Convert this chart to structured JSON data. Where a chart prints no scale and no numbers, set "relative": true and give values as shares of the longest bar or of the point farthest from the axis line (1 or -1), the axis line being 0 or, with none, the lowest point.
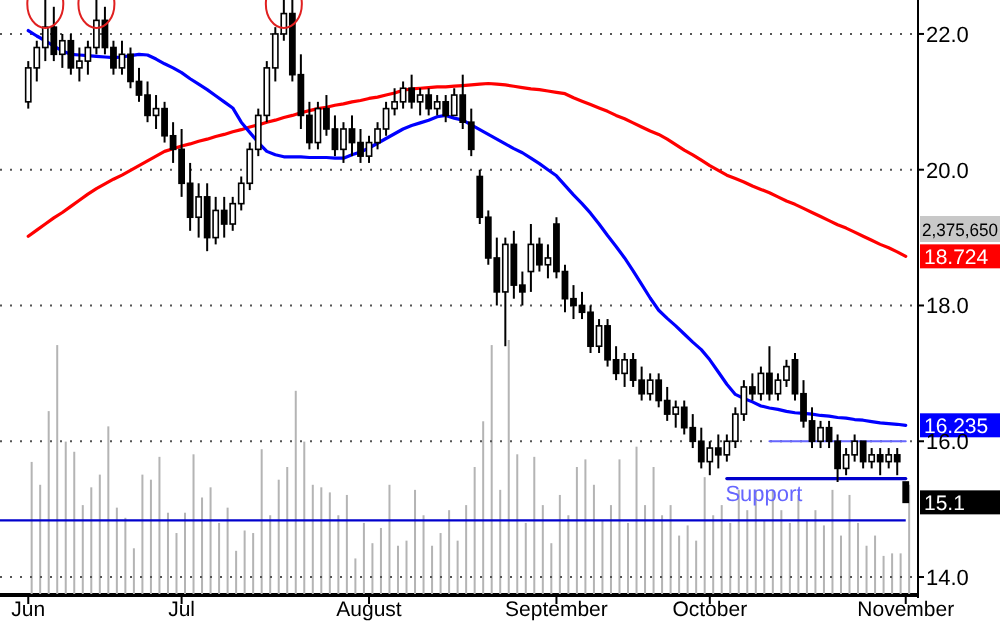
{
  "chart_data": [
    {
      "type": "candlestick",
      "categories": [
        "Jun",
        null,
        null,
        null,
        null,
        null,
        null,
        null,
        null,
        null,
        null,
        null,
        null,
        null,
        null,
        null,
        null,
        null,
        "Jul",
        null,
        null,
        null,
        null,
        null,
        null,
        null,
        null,
        null,
        null,
        null,
        null,
        null,
        null,
        null,
        null,
        null,
        null,
        null,
        null,
        null,
        "August",
        null,
        null,
        null,
        null,
        null,
        null,
        null,
        null,
        null,
        null,
        null,
        null,
        null,
        null,
        null,
        null,
        null,
        null,
        null,
        null,
        null,
        "September",
        null,
        null,
        null,
        null,
        null,
        null,
        null,
        null,
        null,
        null,
        null,
        null,
        null,
        null,
        null,
        null,
        null,
        "October",
        null,
        null,
        null,
        null,
        null,
        null,
        null,
        null,
        null,
        null,
        null,
        null,
        null,
        null,
        null,
        null,
        null,
        null,
        null,
        null,
        null,
        null,
        "November"
      ],
      "ohlc": [
        [
          21.0,
          21.6,
          20.9,
          21.5
        ],
        [
          21.5,
          21.9,
          21.3,
          21.8
        ],
        [
          21.8,
          22.5,
          21.6,
          22.1
        ],
        [
          22.1,
          22.4,
          21.6,
          21.7
        ],
        [
          21.7,
          22.0,
          21.5,
          21.9
        ],
        [
          21.9,
          22.0,
          21.4,
          21.5
        ],
        [
          21.5,
          21.8,
          21.3,
          21.6
        ],
        [
          21.6,
          21.9,
          21.4,
          21.8
        ],
        [
          21.8,
          22.5,
          21.7,
          22.2
        ],
        [
          22.2,
          22.4,
          21.7,
          21.8
        ],
        [
          21.8,
          21.9,
          21.4,
          21.5
        ],
        [
          21.5,
          21.9,
          21.4,
          21.7
        ],
        [
          21.7,
          21.8,
          21.2,
          21.3
        ],
        [
          21.3,
          21.5,
          21.0,
          21.1
        ],
        [
          21.1,
          21.3,
          20.7,
          20.8
        ],
        [
          20.8,
          21.1,
          20.6,
          20.9
        ],
        [
          20.9,
          21.0,
          20.4,
          20.5
        ],
        [
          20.5,
          20.7,
          20.1,
          20.3
        ],
        [
          20.3,
          20.6,
          19.6,
          19.8
        ],
        [
          19.8,
          20.1,
          19.1,
          19.3
        ],
        [
          19.3,
          19.8,
          19.0,
          19.6
        ],
        [
          19.6,
          19.8,
          18.8,
          19.0
        ],
        [
          19.0,
          19.6,
          18.9,
          19.4
        ],
        [
          19.4,
          19.6,
          19.0,
          19.2
        ],
        [
          19.2,
          19.6,
          19.1,
          19.5
        ],
        [
          19.5,
          19.9,
          19.4,
          19.8
        ],
        [
          19.8,
          20.4,
          19.7,
          20.3
        ],
        [
          20.3,
          20.9,
          20.2,
          20.8
        ],
        [
          20.8,
          21.6,
          20.7,
          21.5
        ],
        [
          21.5,
          22.1,
          21.3,
          22.0
        ],
        [
          22.0,
          22.5,
          21.9,
          22.3
        ],
        [
          22.3,
          22.5,
          21.3,
          21.4
        ],
        [
          21.4,
          21.7,
          20.6,
          20.8
        ],
        [
          20.8,
          21.0,
          20.3,
          20.4
        ],
        [
          20.4,
          21.0,
          20.3,
          20.9
        ],
        [
          20.9,
          21.1,
          20.5,
          20.6
        ],
        [
          20.6,
          20.8,
          20.2,
          20.3
        ],
        [
          20.3,
          20.7,
          20.1,
          20.6
        ],
        [
          20.6,
          20.8,
          20.2,
          20.4
        ],
        [
          20.4,
          20.6,
          20.1,
          20.2
        ],
        [
          20.2,
          20.5,
          20.1,
          20.4
        ],
        [
          20.4,
          20.7,
          20.3,
          20.6
        ],
        [
          20.6,
          21.0,
          20.5,
          20.9
        ],
        [
          20.9,
          21.2,
          20.8,
          21.0
        ],
        [
          21.0,
          21.3,
          20.9,
          21.2
        ],
        [
          21.2,
          21.4,
          20.9,
          21.0
        ],
        [
          21.0,
          21.2,
          20.8,
          21.1
        ],
        [
          21.1,
          21.2,
          20.8,
          20.9
        ],
        [
          20.9,
          21.1,
          20.8,
          21.0
        ],
        [
          21.0,
          21.1,
          20.7,
          20.8
        ],
        [
          20.8,
          21.2,
          20.8,
          21.1
        ],
        [
          21.1,
          21.4,
          20.6,
          20.7
        ],
        [
          20.7,
          20.9,
          20.2,
          20.3
        ],
        [
          19.9,
          20.0,
          19.2,
          19.3
        ],
        [
          19.3,
          19.4,
          18.6,
          18.7
        ],
        [
          18.7,
          19.0,
          18.0,
          18.2
        ],
        [
          18.2,
          19.0,
          17.4,
          18.9
        ],
        [
          18.9,
          19.1,
          18.1,
          18.3
        ],
        [
          18.3,
          18.5,
          18.0,
          18.2
        ],
        [
          18.5,
          19.2,
          18.2,
          18.9
        ],
        [
          18.9,
          19.0,
          18.5,
          18.6
        ],
        [
          18.6,
          18.9,
          18.4,
          18.7
        ],
        [
          19.2,
          19.3,
          18.4,
          18.5
        ],
        [
          18.5,
          18.6,
          17.9,
          18.1
        ],
        [
          18.1,
          18.3,
          17.8,
          18.0
        ],
        [
          18.0,
          18.2,
          17.8,
          17.9
        ],
        [
          17.9,
          18.0,
          17.3,
          17.4
        ],
        [
          17.4,
          17.8,
          17.3,
          17.7
        ],
        [
          17.7,
          17.8,
          17.1,
          17.2
        ],
        [
          17.2,
          17.4,
          16.9,
          17.0
        ],
        [
          17.0,
          17.3,
          16.8,
          17.2
        ],
        [
          17.2,
          17.3,
          16.8,
          16.9
        ],
        [
          16.9,
          17.1,
          16.6,
          16.7
        ],
        [
          16.7,
          17.0,
          16.6,
          16.9
        ],
        [
          16.9,
          17.0,
          16.5,
          16.6
        ],
        [
          16.6,
          16.8,
          16.3,
          16.4
        ],
        [
          16.4,
          16.6,
          16.2,
          16.5
        ],
        [
          16.5,
          16.6,
          16.1,
          16.2
        ],
        [
          16.2,
          16.4,
          15.9,
          16.0
        ],
        [
          16.0,
          16.2,
          15.6,
          15.7
        ],
        [
          15.7,
          16.0,
          15.5,
          15.9
        ],
        [
          15.9,
          16.1,
          15.6,
          15.8
        ],
        [
          15.8,
          16.1,
          15.7,
          16.0
        ],
        [
          16.0,
          16.5,
          15.9,
          16.4
        ],
        [
          16.4,
          16.9,
          16.3,
          16.8
        ],
        [
          16.8,
          17.0,
          16.6,
          16.7
        ],
        [
          16.7,
          17.1,
          16.6,
          17.0
        ],
        [
          17.0,
          17.4,
          16.6,
          16.7
        ],
        [
          16.7,
          17.0,
          16.6,
          16.9
        ],
        [
          16.9,
          17.2,
          16.8,
          17.1
        ],
        [
          17.2,
          17.3,
          16.6,
          16.7
        ],
        [
          16.7,
          16.9,
          16.2,
          16.3
        ],
        [
          16.3,
          16.5,
          15.9,
          16.0
        ],
        [
          16.0,
          16.3,
          15.9,
          16.2
        ],
        [
          16.2,
          16.3,
          15.9,
          16.0
        ],
        [
          16.0,
          16.1,
          15.4,
          15.6
        ],
        [
          15.6,
          15.9,
          15.5,
          15.8
        ],
        [
          15.8,
          16.1,
          15.7,
          16.0
        ],
        [
          16.0,
          16.0,
          15.6,
          15.7
        ],
        [
          15.7,
          15.9,
          15.6,
          15.8
        ],
        [
          15.8,
          15.9,
          15.5,
          15.7
        ],
        [
          15.7,
          15.9,
          15.6,
          15.8
        ],
        [
          15.8,
          15.9,
          15.5,
          15.7
        ],
        [
          15.4,
          15.4,
          15.1,
          15.1
        ]
      ],
      "series": [
        {
          "type": "line",
          "color": "#ff0000",
          "values": [
            19.02,
            19.11,
            19.2,
            19.29,
            19.37,
            19.46,
            19.55,
            19.64,
            19.72,
            19.79,
            19.86,
            19.92,
            19.99,
            20.06,
            20.13,
            20.2,
            20.27,
            20.31,
            20.35,
            20.38,
            20.42,
            20.45,
            20.49,
            20.52,
            20.56,
            20.59,
            20.63,
            20.66,
            20.7,
            20.73,
            20.77,
            20.8,
            20.84,
            20.87,
            20.9,
            20.92,
            20.95,
            20.97,
            21.0,
            21.02,
            21.05,
            21.07,
            21.1,
            21.13,
            21.17,
            21.19,
            21.2,
            21.21,
            21.22,
            21.22,
            21.23,
            21.24,
            21.25,
            21.26,
            21.27,
            21.26,
            21.25,
            21.23,
            21.21,
            21.19,
            21.18,
            21.16,
            21.14,
            21.12,
            21.06,
            21.01,
            20.96,
            20.91,
            20.86,
            20.8,
            20.75,
            20.69,
            20.63,
            20.57,
            20.52,
            20.45,
            20.37,
            20.29,
            20.22,
            20.14,
            20.06,
            19.99,
            19.92,
            19.87,
            19.82,
            19.76,
            19.71,
            19.66,
            19.6,
            19.54,
            19.49,
            19.43,
            19.37,
            19.31,
            19.25,
            19.19,
            19.14,
            19.08,
            19.02,
            18.96,
            18.9,
            18.85,
            18.79,
            18.724
          ],
          "value_labels": [
            null,
            null,
            null,
            null,
            null,
            null,
            null,
            null,
            null,
            null,
            null,
            null,
            null,
            null,
            null,
            null,
            null,
            null,
            null,
            null,
            null,
            null,
            null,
            null,
            null,
            null,
            null,
            null,
            null,
            null,
            null,
            null,
            null,
            null,
            null,
            null,
            null,
            null,
            null,
            null,
            null,
            null,
            null,
            null,
            null,
            null,
            null,
            null,
            null,
            null,
            null,
            null,
            null,
            null,
            null,
            null,
            null,
            null,
            null,
            null,
            null,
            null,
            null,
            null,
            null,
            null,
            null,
            null,
            null,
            null,
            null,
            null,
            null,
            null,
            null,
            null,
            null,
            null,
            null,
            null,
            null,
            null,
            null,
            null,
            null,
            null,
            null,
            null,
            null,
            null,
            null,
            null,
            null,
            null,
            null,
            null,
            null,
            null,
            null,
            null,
            null,
            null,
            null,
            "18.724"
          ]
        },
        {
          "type": "line",
          "color": "#0000ff",
          "values": [
            22.05,
            21.97,
            21.9,
            21.82,
            21.75,
            21.7,
            21.69,
            21.68,
            21.67,
            21.66,
            21.65,
            21.66,
            21.68,
            21.7,
            21.69,
            21.63,
            21.56,
            21.5,
            21.43,
            21.34,
            21.26,
            21.18,
            21.09,
            21.0,
            20.91,
            20.7,
            20.55,
            20.4,
            20.27,
            20.22,
            20.19,
            20.19,
            20.19,
            20.18,
            20.18,
            20.18,
            20.17,
            20.17,
            20.22,
            20.26,
            20.32,
            20.39,
            20.46,
            20.53,
            20.6,
            20.65,
            20.69,
            20.73,
            20.78,
            20.8,
            20.76,
            20.73,
            20.66,
            20.59,
            20.52,
            20.45,
            20.38,
            20.31,
            20.25,
            20.17,
            20.09,
            20.0,
            19.91,
            19.77,
            19.63,
            19.5,
            19.36,
            19.2,
            19.03,
            18.87,
            18.7,
            18.51,
            18.31,
            18.11,
            17.93,
            17.81,
            17.7,
            17.58,
            17.46,
            17.35,
            17.2,
            17.02,
            16.84,
            16.69,
            16.63,
            16.58,
            16.52,
            16.49,
            16.47,
            16.44,
            16.42,
            16.41,
            16.4,
            16.38,
            16.37,
            16.35,
            16.34,
            16.32,
            16.31,
            16.29,
            16.27,
            16.26,
            16.25,
            16.235
          ],
          "value_labels": [
            null,
            null,
            null,
            null,
            null,
            null,
            null,
            null,
            null,
            null,
            null,
            null,
            null,
            null,
            null,
            null,
            null,
            null,
            null,
            null,
            null,
            null,
            null,
            null,
            null,
            null,
            null,
            null,
            null,
            null,
            null,
            null,
            null,
            null,
            null,
            null,
            null,
            null,
            null,
            null,
            null,
            null,
            null,
            null,
            null,
            null,
            null,
            null,
            null,
            null,
            null,
            null,
            null,
            null,
            null,
            null,
            null,
            null,
            null,
            null,
            null,
            null,
            null,
            null,
            null,
            null,
            null,
            null,
            null,
            null,
            null,
            null,
            null,
            null,
            null,
            null,
            null,
            null,
            null,
            null,
            null,
            null,
            null,
            null,
            null,
            null,
            null,
            null,
            null,
            null,
            null,
            null,
            null,
            null,
            null,
            null,
            null,
            null,
            null,
            null,
            null,
            null,
            null,
            "16.235"
          ]
        },
        {
          "type": "line",
          "name": "Support",
          "color": "#6666ff",
          "values": [
            null,
            null,
            null,
            null,
            null,
            null,
            null,
            null,
            null,
            null,
            null,
            null,
            null,
            null,
            null,
            null,
            null,
            null,
            null,
            null,
            null,
            null,
            null,
            null,
            null,
            null,
            null,
            null,
            null,
            null,
            null,
            null,
            null,
            null,
            null,
            null,
            null,
            null,
            null,
            null,
            null,
            null,
            null,
            null,
            null,
            null,
            null,
            null,
            null,
            null,
            null,
            null,
            null,
            null,
            null,
            null,
            null,
            null,
            null,
            null,
            null,
            null,
            null,
            null,
            null,
            null,
            null,
            null,
            null,
            null,
            null,
            null,
            null,
            null,
            null,
            null,
            null,
            null,
            null,
            null,
            null,
            null,
            null,
            null,
            null,
            null,
            null,
            16.0,
            16.0,
            16.0,
            16.0,
            16.0,
            16.0,
            16.0,
            16.0,
            16.0,
            16.0,
            16.0,
            16.0,
            16.0,
            16.0,
            16.0,
            16.0,
            16.0
          ]
        },
        {
          "type": "line",
          "color": "#0000cc",
          "values": [
            null,
            null,
            null,
            null,
            null,
            null,
            null,
            null,
            null,
            null,
            null,
            null,
            null,
            null,
            null,
            null,
            null,
            null,
            null,
            null,
            null,
            null,
            null,
            null,
            null,
            null,
            null,
            null,
            null,
            null,
            null,
            null,
            null,
            null,
            null,
            null,
            null,
            null,
            null,
            null,
            null,
            null,
            null,
            null,
            null,
            null,
            null,
            null,
            null,
            null,
            null,
            null,
            null,
            null,
            null,
            null,
            null,
            null,
            null,
            null,
            null,
            null,
            null,
            null,
            null,
            null,
            null,
            null,
            null,
            null,
            null,
            null,
            null,
            null,
            null,
            null,
            null,
            null,
            null,
            null,
            null,
            null,
            15.45,
            15.45,
            15.45,
            15.45,
            15.45,
            15.45,
            15.45,
            15.45,
            15.45,
            15.45,
            15.45,
            15.45,
            15.45,
            15.45,
            15.45,
            15.45,
            15.45,
            15.45,
            15.45,
            15.45,
            15.45,
            15.45
          ]
        }
      ],
      "ylim": [
        13.75,
        22.5
      ],
      "yticks": [
        {
          "value": 14,
          "label": "14.0"
        },
        {
          "value": 16,
          "label": "16.0"
        },
        {
          "value": 18,
          "label": "18.0"
        },
        {
          "value": 20,
          "label": "20.0"
        },
        {
          "value": 22,
          "label": "22.0"
        }
      ],
      "grid": "y",
      "annotations": [
        "15.1"
      ]
    },
    {
      "type": "bar",
      "relative": true,
      "color": "#b4b4b4",
      "categories": [
        null,
        null,
        null,
        null,
        null,
        null,
        null,
        null,
        null,
        null,
        null,
        null,
        null,
        null,
        null,
        null,
        null,
        null,
        null,
        null,
        null,
        null,
        null,
        null,
        null,
        null,
        null,
        null,
        null,
        null,
        null,
        null,
        null,
        null,
        null,
        null,
        null,
        null,
        null,
        null,
        null,
        null,
        null,
        null,
        null,
        null,
        null,
        null,
        null,
        null,
        null,
        null,
        null,
        null,
        null,
        null,
        null,
        null,
        null,
        null,
        null,
        null,
        null,
        null,
        null,
        null,
        null,
        null,
        null,
        null,
        null,
        null,
        null,
        null,
        null,
        null,
        null,
        null,
        null,
        null,
        null,
        null,
        null,
        null,
        null,
        null,
        null,
        null,
        null,
        null,
        null,
        null,
        null,
        null,
        null,
        null,
        null,
        null,
        null,
        null,
        null,
        null,
        null,
        null
      ],
      "values": [
        0.52,
        0.43,
        0.72,
        0.98,
        0.6,
        0.56,
        0.35,
        0.42,
        0.47,
        0.66,
        0.34,
        0.3,
        0.18,
        0.47,
        0.45,
        0.54,
        0.32,
        0.24,
        0.32,
        0.55,
        0.38,
        0.42,
        0.28,
        0.34,
        0.17,
        0.25,
        0.24,
        0.57,
        0.31,
        0.45,
        0.5,
        0.8,
        0.6,
        0.43,
        0.42,
        0.4,
        0.31,
        0.39,
        0.14,
        0.28,
        0.2,
        0.26,
        0.43,
        0.19,
        0.21,
        0.41,
        0.31,
        0.19,
        0.24,
        0.33,
        0.21,
        0.35,
        0.5,
        0.68,
        0.98,
        0.41,
        1,
        0.55,
        0.28,
        0.54,
        0.35,
        0.2,
        0.39,
        0.31,
        0.5,
        0.53,
        0.43,
        0.29,
        0.35,
        0.53,
        0.28,
        0.58,
        0.35,
        0.5,
        0.31,
        0.35,
        0.23,
        0.27,
        0.21,
        0.46,
        0.31,
        0.35,
        0.28,
        0.41,
        0.33,
        0.41,
        0.29,
        0.41,
        0.33,
        0.28,
        0.39,
        0.29,
        0.33,
        0.27,
        0.41,
        0.23,
        0.39,
        0.28,
        0.19,
        0.23,
        0.15,
        0.16,
        0.16,
        0.43
      ],
      "ref_lines": [
        {
          "axis": "y",
          "value": 0.29,
          "color": "#0000cc"
        }
      ],
      "annotations": [
        "2,375,650"
      ]
    }
  ]
}
